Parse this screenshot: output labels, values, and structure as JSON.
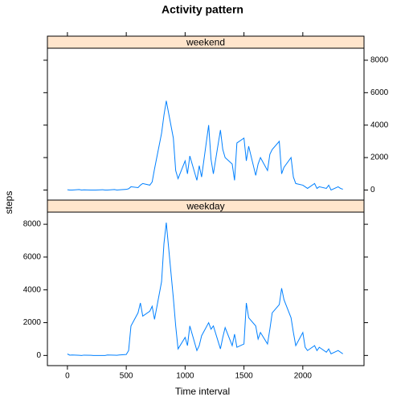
{
  "chart_data": [
    {
      "type": "line",
      "title": "Activity pattern",
      "xlabel": "Time interval",
      "ylabel": "steps",
      "strip": "weekend",
      "strip_color": "#ffe5cc",
      "color": "#0080ff",
      "x": [
        0,
        20,
        40,
        100,
        120,
        140,
        200,
        220,
        240,
        300,
        320,
        340,
        400,
        420,
        440,
        500,
        520,
        540,
        600,
        620,
        640,
        700,
        720,
        740,
        800,
        820,
        840,
        900,
        920,
        940,
        1000,
        1020,
        1040,
        1100,
        1120,
        1140,
        1200,
        1220,
        1240,
        1300,
        1320,
        1340,
        1400,
        1420,
        1440,
        1500,
        1520,
        1540,
        1600,
        1620,
        1640,
        1700,
        1720,
        1740,
        1800,
        1820,
        1840,
        1900,
        1920,
        1940,
        2000,
        2020,
        2040,
        2100,
        2120,
        2140,
        2200,
        2220,
        2240,
        2300,
        2320,
        2340
      ],
      "values": [
        20,
        0,
        0,
        30,
        0,
        10,
        0,
        0,
        0,
        20,
        0,
        0,
        30,
        0,
        10,
        40,
        80,
        200,
        150,
        300,
        400,
        300,
        500,
        1300,
        3500,
        4600,
        5500,
        3200,
        1200,
        700,
        1800,
        1000,
        2100,
        600,
        1500,
        800,
        4000,
        1900,
        1000,
        3700,
        2500,
        2000,
        1600,
        600,
        2900,
        3200,
        1800,
        2700,
        900,
        1600,
        2000,
        1200,
        2200,
        2500,
        3000,
        1000,
        1400,
        2000,
        800,
        400,
        300,
        200,
        100,
        400,
        100,
        200,
        100,
        300,
        0,
        200,
        100,
        50
      ],
      "xlim": [
        -170,
        2520
      ],
      "ylim": [
        -620,
        8740
      ],
      "xticks": [
        0,
        500,
        1000,
        1500,
        2000
      ],
      "yticks": [
        0,
        2000,
        4000,
        6000,
        8000
      ],
      "ytick_side": "right"
    },
    {
      "type": "line",
      "strip": "weekday",
      "strip_color": "#ffe5cc",
      "color": "#0080ff",
      "x": [
        0,
        20,
        40,
        100,
        120,
        140,
        200,
        220,
        240,
        300,
        320,
        340,
        400,
        420,
        440,
        500,
        520,
        540,
        600,
        620,
        640,
        700,
        720,
        740,
        800,
        820,
        840,
        900,
        920,
        940,
        1000,
        1020,
        1040,
        1100,
        1120,
        1140,
        1200,
        1220,
        1240,
        1300,
        1320,
        1340,
        1400,
        1420,
        1440,
        1500,
        1520,
        1540,
        1600,
        1620,
        1640,
        1700,
        1720,
        1740,
        1800,
        1820,
        1840,
        1900,
        1920,
        1940,
        2000,
        2020,
        2040,
        2100,
        2120,
        2140,
        2200,
        2220,
        2240,
        2300,
        2320,
        2340
      ],
      "values": [
        90,
        20,
        30,
        10,
        0,
        20,
        10,
        0,
        0,
        0,
        0,
        30,
        20,
        10,
        30,
        60,
        300,
        1800,
        2600,
        3200,
        2400,
        2700,
        3000,
        2200,
        4500,
        6800,
        8100,
        3500,
        1800,
        400,
        1100,
        600,
        1800,
        300,
        600,
        1200,
        2000,
        1600,
        1800,
        400,
        1100,
        1700,
        600,
        1300,
        500,
        700,
        3200,
        2300,
        1800,
        1000,
        1400,
        700,
        1600,
        2600,
        3100,
        4100,
        3400,
        2300,
        1400,
        600,
        1400,
        500,
        300,
        600,
        300,
        500,
        200,
        400,
        100,
        300,
        200,
        100
      ],
      "xlim": [
        -170,
        2520
      ],
      "ylim": [
        -620,
        8740
      ],
      "xticks": [
        0,
        500,
        1000,
        1500,
        2000
      ],
      "yticks": [
        0,
        2000,
        4000,
        6000,
        8000
      ],
      "ytick_side": "left"
    }
  ]
}
